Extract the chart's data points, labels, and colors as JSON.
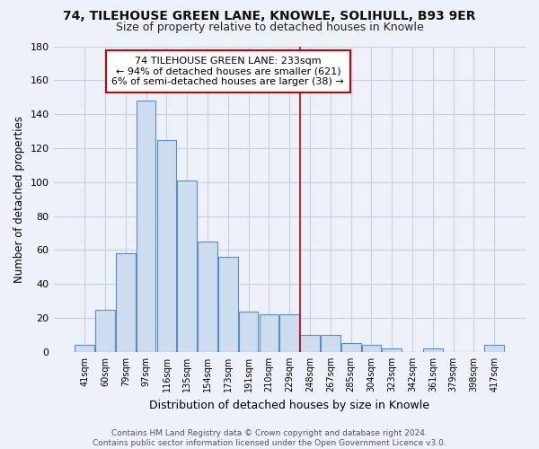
{
  "title": "74, TILEHOUSE GREEN LANE, KNOWLE, SOLIHULL, B93 9ER",
  "subtitle": "Size of property relative to detached houses in Knowle",
  "xlabel": "Distribution of detached houses by size in Knowle",
  "ylabel": "Number of detached properties",
  "bar_labels": [
    "41sqm",
    "60sqm",
    "79sqm",
    "97sqm",
    "116sqm",
    "135sqm",
    "154sqm",
    "173sqm",
    "191sqm",
    "210sqm",
    "229sqm",
    "248sqm",
    "267sqm",
    "285sqm",
    "304sqm",
    "323sqm",
    "342sqm",
    "361sqm",
    "379sqm",
    "398sqm",
    "417sqm"
  ],
  "bar_values": [
    4,
    25,
    58,
    148,
    125,
    101,
    65,
    56,
    24,
    22,
    22,
    10,
    10,
    5,
    4,
    2,
    0,
    2,
    0,
    0,
    4
  ],
  "bar_color": "#cddcef",
  "bar_edge_color": "#5b8ec4",
  "vline_x": 10.5,
  "vline_color": "#cc0000",
  "annotation_title": "74 TILEHOUSE GREEN LANE: 233sqm",
  "annotation_line1": "← 94% of detached houses are smaller (621)",
  "annotation_line2": "6% of semi-detached houses are larger (38) →",
  "annotation_box_facecolor": "#ffffff",
  "annotation_box_edgecolor": "#cc0000",
  "ylim": [
    0,
    180
  ],
  "yticks": [
    0,
    20,
    40,
    60,
    80,
    100,
    120,
    140,
    160,
    180
  ],
  "footer1": "Contains HM Land Registry data © Crown copyright and database right 2024.",
  "footer2": "Contains public sector information licensed under the Open Government Licence v3.0.",
  "bg_color": "#edf1f9",
  "grid_color": "#c8d0df",
  "plot_bg_color": "#edf1f9"
}
